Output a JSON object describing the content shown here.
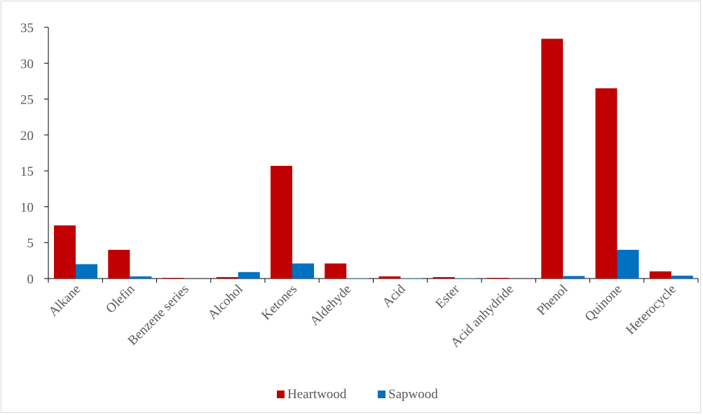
{
  "chart_data": {
    "type": "bar",
    "title": "",
    "xlabel": "",
    "ylabel": "",
    "ylim": [
      0,
      35
    ],
    "yticks": [
      0,
      5,
      10,
      15,
      20,
      25,
      30,
      35
    ],
    "grid": false,
    "legend_position": "bottom",
    "categories": [
      "Alkane",
      "Olefin",
      "Benzene series",
      "Alcohol",
      "Ketones",
      "Aldehyde",
      "Acid",
      "Ester",
      "Acid anhydride",
      "Phenol",
      "Quinone",
      "Heterocycle"
    ],
    "series": [
      {
        "name": "Heartwood",
        "color": "#C00000",
        "values": [
          7.4,
          4.0,
          0.1,
          0.2,
          15.7,
          2.1,
          0.3,
          0.2,
          0.1,
          33.4,
          26.5,
          1.0
        ]
      },
      {
        "name": "Sapwood",
        "color": "#0070C0",
        "values": [
          2.0,
          0.3,
          0.0,
          0.9,
          2.1,
          0.05,
          0.05,
          0.05,
          0.0,
          0.35,
          4.0,
          0.4
        ]
      }
    ]
  }
}
